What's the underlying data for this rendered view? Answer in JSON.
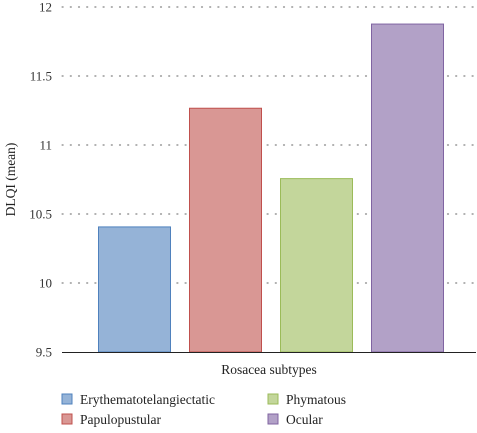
{
  "chart_data": {
    "type": "bar",
    "ylabel": "DLQI (mean)",
    "xlabel": "Rosacea subtypes",
    "ylim": [
      9.5,
      12
    ],
    "yticks": [
      9.5,
      10,
      10.5,
      11,
      11.5,
      12
    ],
    "ytick_labels": [
      "9.5",
      "10",
      "10.5",
      "11",
      "11.5",
      "12"
    ],
    "grid": true,
    "legend_position": "bottom",
    "categories": [
      "Erythematotelangiectatic",
      "Papulopustular",
      "Phymatous",
      "Ocular"
    ],
    "values": [
      10.41,
      11.27,
      10.76,
      11.88
    ],
    "colors": [
      "#95b3d7",
      "#d99794",
      "#c3d69b",
      "#b2a1c7"
    ],
    "border_colors": [
      "#4f81bd",
      "#c0504d",
      "#9bbb59",
      "#8064a2"
    ]
  }
}
